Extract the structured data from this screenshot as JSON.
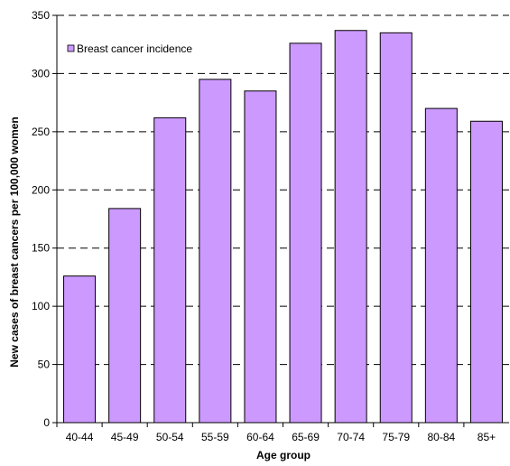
{
  "colors": {
    "bar_fill": "#cc99ff",
    "bar_stroke": "#000000",
    "grid": "#000000"
  },
  "chart_data": {
    "type": "bar",
    "title": "",
    "xlabel": "Age  group",
    "ylabel": "New cases of breast cancers per 100,000 women",
    "categories": [
      "40-44",
      "45-49",
      "50-54",
      "55-59",
      "60-64",
      "65-69",
      "70-74",
      "75-79",
      "80-84",
      "85+"
    ],
    "series": [
      {
        "name": "Breast cancer incidence",
        "values": [
          126,
          184,
          262,
          295,
          285,
          326,
          337,
          335,
          270,
          259
        ]
      }
    ],
    "ylim": [
      0,
      350
    ],
    "yticks": [
      0,
      50,
      100,
      150,
      200,
      250,
      300,
      350
    ],
    "grid": "horizontal dashed",
    "legend_position": "top-left"
  }
}
